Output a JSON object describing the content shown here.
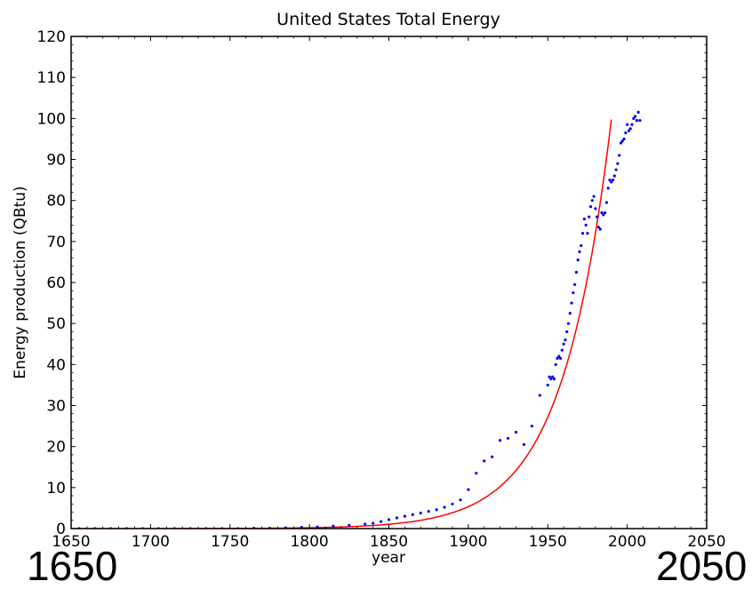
{
  "chart_data": {
    "type": "scatter",
    "title": "United States Total Energy",
    "xlabel": "year",
    "ylabel": "Energy production (QBtu)",
    "xlim": [
      1650,
      2050
    ],
    "ylim": [
      0,
      120
    ],
    "xticks": [
      1650,
      1700,
      1750,
      1800,
      1850,
      1900,
      1950,
      2000,
      2050
    ],
    "yticks": [
      0,
      10,
      20,
      30,
      40,
      50,
      60,
      70,
      80,
      90,
      100,
      110,
      120
    ],
    "grid": false,
    "legend": "none",
    "scatter_color": "#0000ff",
    "line_color": "#ff0000",
    "series": [
      {
        "kind": "points",
        "x": [
          1635,
          1645,
          1655,
          1665,
          1675,
          1685,
          1695,
          1705,
          1715,
          1725,
          1735,
          1745,
          1755,
          1765,
          1775,
          1785,
          1795,
          1805,
          1815,
          1825,
          1835,
          1840,
          1845,
          1850,
          1855,
          1860,
          1865,
          1870,
          1875,
          1880,
          1885,
          1890,
          1895,
          1900,
          1905,
          1910,
          1915,
          1920,
          1925,
          1930,
          1935,
          1940,
          1945,
          1950,
          1951,
          1952,
          1953,
          1954,
          1955,
          1956,
          1957,
          1958,
          1959,
          1960,
          1961,
          1962,
          1963,
          1964,
          1965,
          1966,
          1967,
          1968,
          1969,
          1970,
          1971,
          1972,
          1973,
          1974,
          1975,
          1976,
          1977,
          1978,
          1979,
          1980,
          1981,
          1982,
          1983,
          1984,
          1985,
          1986,
          1987,
          1988,
          1989,
          1990,
          1991,
          1992,
          1993,
          1994,
          1995,
          1996,
          1997,
          1998,
          1999,
          2000,
          2001,
          2002,
          2003,
          2004,
          2005,
          2006,
          2007,
          2008
        ],
        "y": [
          0,
          0,
          0,
          0,
          0,
          0,
          0,
          0,
          0,
          0,
          0,
          0,
          0,
          0.1,
          0.1,
          0.2,
          0.3,
          0.4,
          0.6,
          0.8,
          1.1,
          1.3,
          1.7,
          2.2,
          2.6,
          3.0,
          3.4,
          3.8,
          4.2,
          4.6,
          5.2,
          6.0,
          7.0,
          9.5,
          13.5,
          16.5,
          17.5,
          21.5,
          22.0,
          23.5,
          20.5,
          25.0,
          32.5,
          35.0,
          37.0,
          36.5,
          37.0,
          36.5,
          40.0,
          41.5,
          42.0,
          41.5,
          43.5,
          45.0,
          46.0,
          48.0,
          50.0,
          52.5,
          55.0,
          57.5,
          59.5,
          62.5,
          65.5,
          67.5,
          69.0,
          72.0,
          75.5,
          74.0,
          72.0,
          76.0,
          78.5,
          80.0,
          81.0,
          78.0,
          76.0,
          73.5,
          73.0,
          77.0,
          76.5,
          77.0,
          79.5,
          83.0,
          85.0,
          84.5,
          85.0,
          86.0,
          87.5,
          89.0,
          91.0,
          94.0,
          94.5,
          95.0,
          96.5,
          98.5,
          97.0,
          97.5,
          98.5,
          100.0,
          100.5,
          99.5,
          101.5,
          99.5
        ]
      },
      {
        "kind": "fit",
        "x_start": 1650,
        "x_end": 1990,
        "y_at_end": 99.7,
        "growth_rate": 0.0325
      }
    ]
  },
  "annotations": {
    "left_big": "1650",
    "right_big": "2050"
  }
}
